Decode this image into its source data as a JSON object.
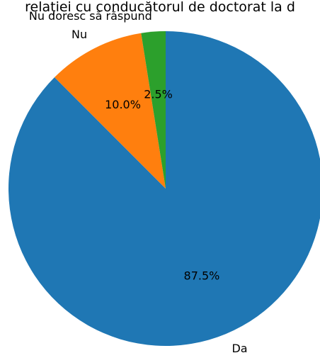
{
  "chart_data": {
    "type": "pie",
    "title": "relației cu conducătorul de doctorat la d",
    "categories": [
      "Da",
      "Nu",
      "Nu doresc să răspund"
    ],
    "values": [
      87.5,
      10.0,
      2.5
    ],
    "percent_labels": [
      "87.5%",
      "10.0%",
      "2.5%"
    ],
    "colors": [
      "#1f77b4",
      "#ff7f0e",
      "#2ca02c"
    ],
    "start_angle_deg": 90,
    "direction": "clockwise",
    "legend": "none"
  }
}
